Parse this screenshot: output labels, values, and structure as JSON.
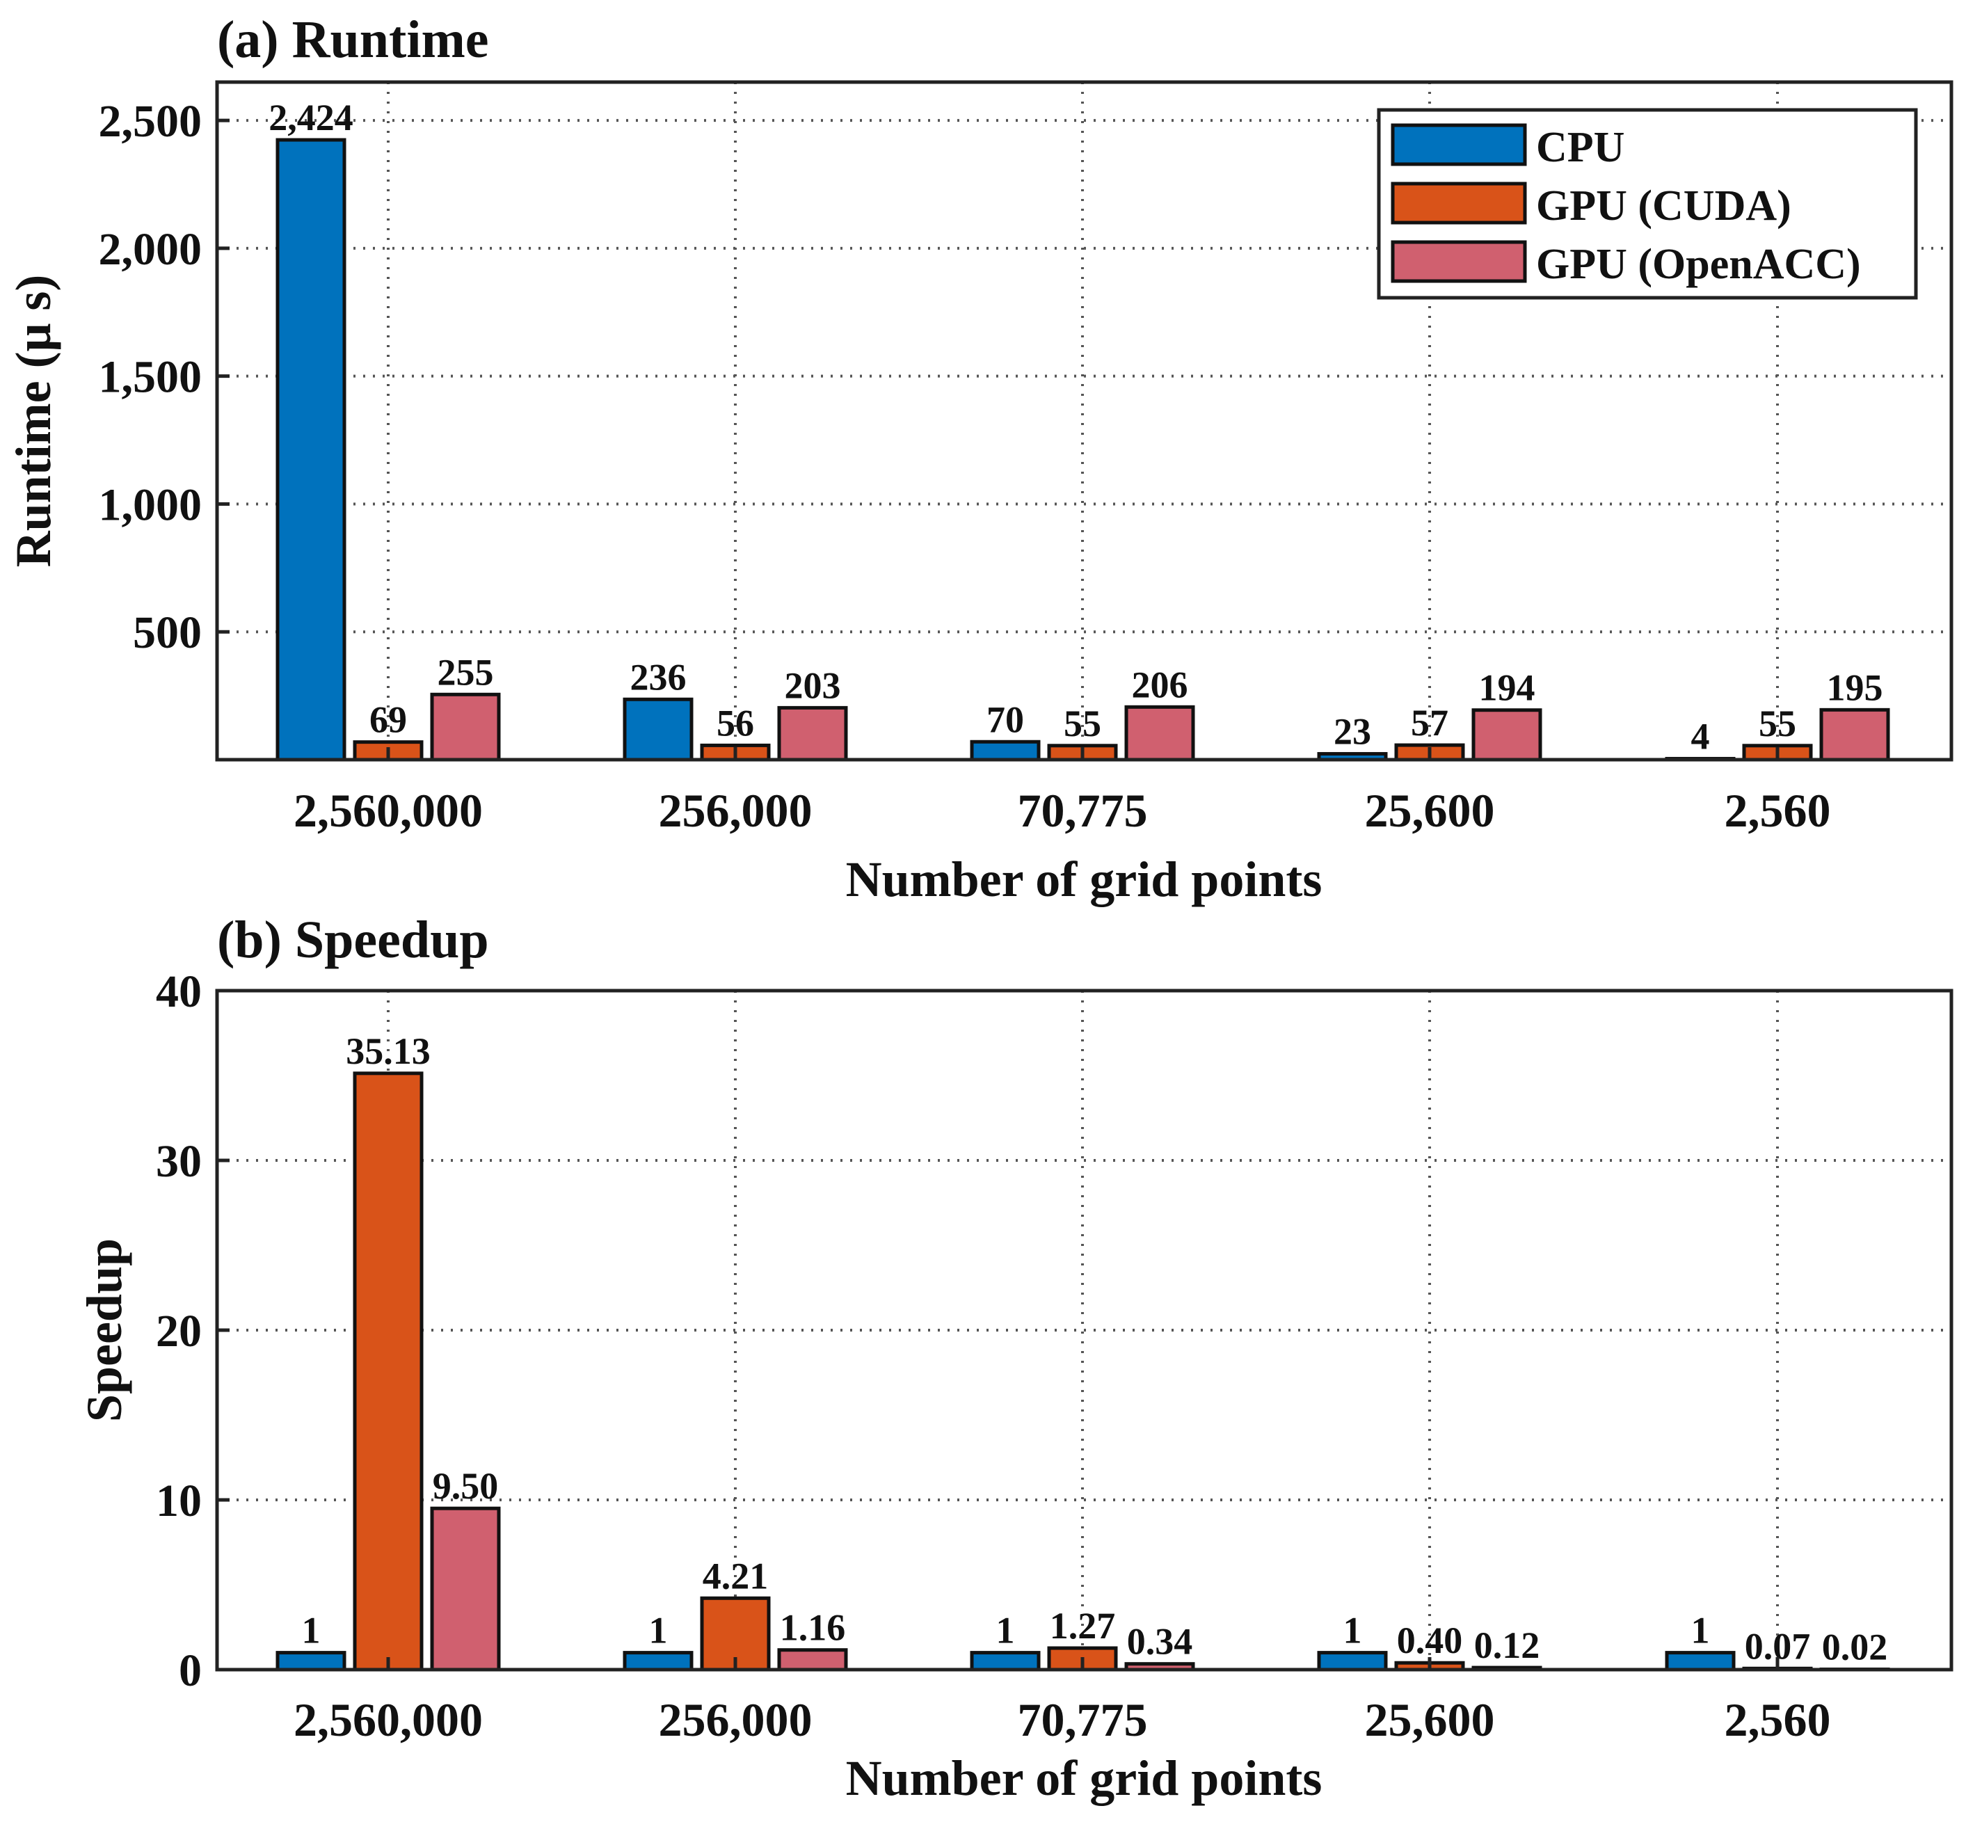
{
  "chart_data": [
    {
      "type": "bar",
      "title": "(a) Runtime",
      "xlabel": "Number of grid points",
      "ylabel": "Runtime (μ s)",
      "categories": [
        "2,560,000",
        "256,000",
        "70,775",
        "25,600",
        "2,560"
      ],
      "ylim": [
        0,
        2650
      ],
      "yticks": [
        500,
        1000,
        1500,
        2000,
        2500
      ],
      "ytick_labels": [
        "500",
        "1,000",
        "1,500",
        "2,000",
        "2,500"
      ],
      "grid": true,
      "legend_position": "top-right",
      "series": [
        {
          "name": "CPU",
          "color": "#0072BD",
          "values": [
            2424,
            236,
            70,
            23,
            4
          ],
          "labels": [
            "2,424",
            "236",
            "70",
            "23",
            "4"
          ]
        },
        {
          "name": "GPU (CUDA)",
          "color": "#D95319",
          "values": [
            69,
            56,
            55,
            57,
            55
          ],
          "labels": [
            "69",
            "56",
            "55",
            "57",
            "55"
          ]
        },
        {
          "name": "GPU (OpenACC)",
          "color": "#D0606F",
          "values": [
            255,
            203,
            206,
            194,
            195
          ],
          "labels": [
            "255",
            "203",
            "206",
            "194",
            "195"
          ]
        }
      ]
    },
    {
      "type": "bar",
      "title": "(b) Speedup",
      "xlabel": "Number of grid points",
      "ylabel": "Speedup",
      "categories": [
        "2,560,000",
        "256,000",
        "70,775",
        "25,600",
        "2,560"
      ],
      "ylim": [
        0,
        40
      ],
      "yticks": [
        0,
        10,
        20,
        30,
        40
      ],
      "ytick_labels": [
        "0",
        "10",
        "20",
        "30",
        "40"
      ],
      "grid": true,
      "series": [
        {
          "name": "CPU",
          "color": "#0072BD",
          "values": [
            1,
            1,
            1,
            1,
            1
          ],
          "labels": [
            "1",
            "1",
            "1",
            "1",
            "1"
          ]
        },
        {
          "name": "GPU (CUDA)",
          "color": "#D95319",
          "values": [
            35.13,
            4.21,
            1.27,
            0.4,
            0.07
          ],
          "labels": [
            "35.13",
            "4.21",
            "1.27",
            "0.40",
            "0.07"
          ]
        },
        {
          "name": "GPU (OpenACC)",
          "color": "#D0606F",
          "values": [
            9.5,
            1.16,
            0.34,
            0.12,
            0.02
          ],
          "labels": [
            "9.50",
            "1.16",
            "0.34",
            "0.12",
            "0.02"
          ]
        }
      ]
    }
  ]
}
